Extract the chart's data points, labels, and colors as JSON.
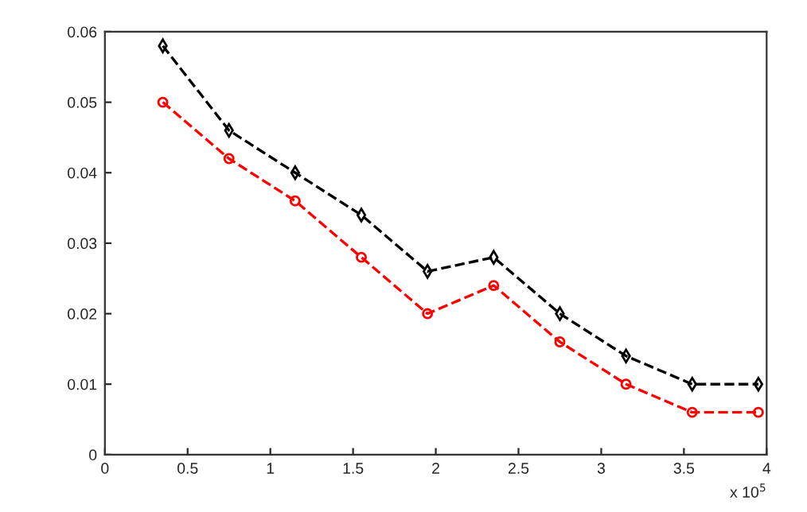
{
  "chart_data": {
    "type": "line",
    "x": [
      0.35,
      0.75,
      1.15,
      1.55,
      1.95,
      2.35,
      2.75,
      3.15,
      3.55,
      3.95
    ],
    "series": [
      {
        "color": "#000000",
        "marker": "diamond",
        "values": [
          0.058,
          0.046,
          0.04,
          0.034,
          0.026,
          0.028,
          0.02,
          0.014,
          0.01,
          0.01
        ]
      },
      {
        "color": "#ff0000",
        "marker": "circle",
        "values": [
          0.05,
          0.042,
          0.036,
          0.028,
          0.02,
          0.024,
          0.016,
          0.01,
          0.006,
          0.006
        ]
      }
    ],
    "line_style": "dashed",
    "xlim": [
      0,
      4
    ],
    "xticks": [
      0,
      0.5,
      1,
      1.5,
      2,
      2.5,
      3,
      3.5,
      4
    ],
    "ylim": [
      0,
      0.06
    ],
    "yticks": [
      0,
      0.01,
      0.02,
      0.03,
      0.04,
      0.05,
      0.06
    ],
    "annotations": [
      "x 10$^{5}$"
    ],
    "grid": false,
    "legend": false
  }
}
